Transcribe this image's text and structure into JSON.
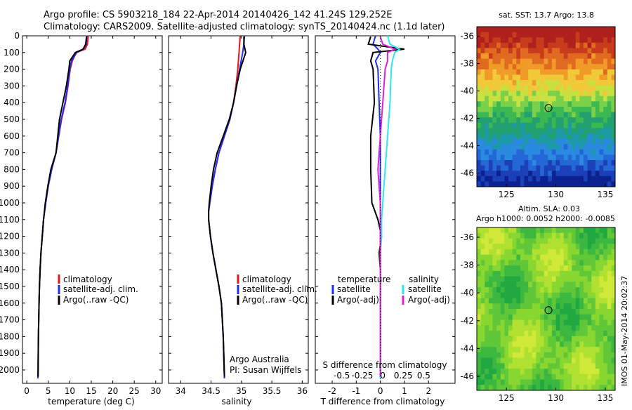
{
  "header": {
    "line1": "Argo profile: CS 5903218_184 22-Apr-2014 20140426_142 41.24S 129.252E",
    "line2": "Climatology: CARS2009. Satellite-adjusted climatology: synTS_20140424.nc (1.1d later)"
  },
  "colors": {
    "climatology": "#e8141c",
    "satellite": "#1f2ef0",
    "argo": "#000000",
    "sal_satellite": "#2ee6f0",
    "sal_argo": "#e020d8"
  },
  "panels": {
    "temperature": {
      "xlabel": "temperature (deg C)",
      "legend": [
        "climatology",
        "satellite-adj. clim.",
        "Argo(..raw -QC)"
      ]
    },
    "salinity": {
      "xlabel": "salinity",
      "legend": [
        "climatology",
        "satellite-adj. clim.",
        "Argo(..raw -QC)"
      ],
      "credit1": "Argo Australia",
      "credit2": "PI: Susan Wijffels"
    },
    "difference": {
      "xlabel": "T difference from climatology",
      "top_label": "S difference from climatology",
      "legend_t_head": "temperature",
      "legend_s_head": "salinity",
      "legend_t": [
        "satellite",
        "Argo(-adj)"
      ],
      "legend_s": [
        "satellite",
        "Argo(-adj)"
      ]
    }
  },
  "maps": {
    "sst_title": "sat. SST: 13.7 Argo: 13.8",
    "sla_title1": "Altim. SLA: 0.03",
    "sla_title2": "Argo h1000: 0.0052 h2000: -0.0085",
    "xticks": [
      "125",
      "130",
      "135"
    ],
    "yticks": [
      "-36",
      "-38",
      "-40",
      "-42",
      "-44",
      "-46"
    ],
    "float_lon": 129.252,
    "float_lat": -41.24,
    "lon_range": [
      122,
      136
    ],
    "lat_range": [
      -47,
      -35.3
    ]
  },
  "side_stamp": "IMOS 01-May-2014 20:02:37",
  "chart_data": [
    {
      "type": "line",
      "title": "",
      "xlabel": "temperature (deg C)",
      "ylabel": "",
      "xlim": [
        -1,
        31.5
      ],
      "ylim": [
        2080,
        0
      ],
      "xticks": [
        0,
        5,
        10,
        15,
        20,
        25,
        30
      ],
      "yticks": [
        0,
        100,
        200,
        300,
        400,
        500,
        600,
        700,
        800,
        900,
        1000,
        1100,
        1200,
        1300,
        1400,
        1500,
        1600,
        1700,
        1800,
        1900,
        2000
      ],
      "series": [
        {
          "name": "climatology",
          "x": [
            14.3,
            14.1,
            13.6,
            11.5,
            10.6,
            10.1,
            9.6,
            9.0,
            8.1,
            6.8,
            5.8,
            5.0,
            4.4,
            3.9,
            3.6,
            3.3,
            3.1,
            2.95,
            2.85,
            2.7,
            2.6
          ],
          "y": [
            0,
            50,
            80,
            100,
            150,
            200,
            300,
            400,
            500,
            700,
            800,
            900,
            1000,
            1100,
            1200,
            1300,
            1400,
            1500,
            1600,
            1800,
            2050
          ]
        },
        {
          "name": "satellite-adj. clim.",
          "x": [
            14.0,
            13.8,
            13.2,
            11.6,
            10.4,
            10.0,
            9.5,
            8.9,
            8.0,
            6.8,
            5.8,
            5.0,
            4.4,
            3.9,
            3.6,
            3.3,
            3.1,
            2.95,
            2.85,
            2.7,
            2.6
          ],
          "y": [
            0,
            50,
            80,
            100,
            150,
            200,
            300,
            400,
            500,
            700,
            800,
            900,
            1000,
            1100,
            1200,
            1300,
            1400,
            1500,
            1600,
            1800,
            2050
          ]
        },
        {
          "name": "Argo(..raw -QC)",
          "x": [
            13.9,
            13.7,
            13.1,
            11.3,
            10.0,
            9.8,
            9.2,
            8.4,
            7.6,
            6.8,
            5.6,
            4.9,
            4.3,
            3.9,
            3.6,
            3.3,
            3.1,
            2.95,
            2.85,
            2.7,
            2.65
          ],
          "y": [
            5,
            50,
            80,
            100,
            150,
            200,
            300,
            400,
            500,
            700,
            800,
            900,
            1000,
            1100,
            1200,
            1300,
            1400,
            1500,
            1600,
            1800,
            2040
          ]
        }
      ]
    },
    {
      "type": "line",
      "title": "",
      "xlabel": "salinity",
      "ylabel": "",
      "xlim": [
        33.8,
        36.1
      ],
      "ylim": [
        2080,
        0
      ],
      "xticks": [
        34,
        34.5,
        35,
        35.5,
        36
      ],
      "yticks": [
        0,
        100,
        200,
        300,
        400,
        500,
        600,
        700,
        800,
        900,
        1000,
        1100,
        1200,
        1300,
        1400,
        1500,
        1600,
        1700,
        1800,
        1900,
        2000
      ],
      "series": [
        {
          "name": "climatology",
          "x": [
            34.98,
            34.97,
            34.96,
            34.94,
            34.91,
            34.87,
            34.81,
            34.72,
            34.63,
            34.57,
            34.52,
            34.48,
            34.46,
            34.46,
            34.49,
            34.53,
            34.58,
            34.63,
            34.67,
            34.7,
            34.72
          ],
          "y": [
            0,
            50,
            100,
            200,
            300,
            400,
            500,
            600,
            700,
            800,
            900,
            1000,
            1050,
            1100,
            1200,
            1300,
            1400,
            1500,
            1600,
            1800,
            2050
          ]
        },
        {
          "name": "satellite-adj. clim.",
          "x": [
            35.05,
            35.04,
            35.02,
            34.97,
            34.92,
            34.87,
            34.81,
            34.72,
            34.63,
            34.57,
            34.52,
            34.48,
            34.46,
            34.46,
            34.49,
            34.53,
            34.58,
            34.63,
            34.67,
            34.7,
            34.72
          ],
          "y": [
            0,
            50,
            100,
            200,
            300,
            400,
            500,
            600,
            700,
            800,
            900,
            1000,
            1050,
            1100,
            1200,
            1300,
            1400,
            1500,
            1600,
            1800,
            2050
          ]
        },
        {
          "name": "Argo(..raw -QC)",
          "x": [
            35.04,
            35.04,
            35.07,
            34.98,
            34.92,
            34.87,
            34.8,
            34.7,
            34.6,
            34.54,
            34.5,
            34.47,
            34.46,
            34.46,
            34.49,
            34.53,
            34.58,
            34.63,
            34.67,
            34.7,
            34.72
          ],
          "y": [
            5,
            50,
            100,
            200,
            300,
            400,
            500,
            600,
            700,
            800,
            900,
            1000,
            1050,
            1100,
            1200,
            1300,
            1400,
            1500,
            1600,
            1800,
            2040
          ]
        }
      ]
    },
    {
      "type": "line",
      "title": "",
      "xlabel": "T difference from climatology",
      "ylabel": "",
      "top_xlabel": "S difference from climatology",
      "xlim": [
        -2.7,
        3.1
      ],
      "ylim": [
        2080,
        0
      ],
      "xticks": [
        -2,
        -1,
        0,
        1,
        2
      ],
      "top_ticks": [
        "-0.5",
        "-0.25",
        "0",
        "0.25",
        "0.5"
      ],
      "yticks": [
        0,
        100,
        200,
        300,
        400,
        500,
        600,
        700,
        800,
        900,
        1000,
        1100,
        1200,
        1300,
        1400,
        1500,
        1600,
        1700,
        1800,
        1900,
        2000
      ],
      "series": [
        {
          "name": "temperature satellite",
          "x": [
            -0.2,
            -0.3,
            -0.1,
            0.0,
            -0.2,
            -0.1,
            -0.05,
            0.0,
            0.0,
            0.0,
            0.0,
            0.0,
            0.0,
            0.0,
            0.0,
            0.0,
            0.0,
            0.0,
            0.0
          ],
          "y": [
            0,
            50,
            80,
            100,
            150,
            200,
            400,
            600,
            800,
            1000,
            1100,
            1200,
            1300,
            1400,
            1500,
            1600,
            1700,
            1900,
            2050
          ]
        },
        {
          "name": "temperature Argo(-adj)",
          "x": [
            -0.4,
            -0.5,
            1.0,
            -0.3,
            -0.4,
            -0.3,
            -0.25,
            -0.4,
            -0.4,
            -0.35,
            -0.1,
            0.05,
            -0.05,
            0.0,
            0.0,
            0.0,
            0.0,
            0.0,
            0.0
          ],
          "y": [
            5,
            50,
            80,
            100,
            150,
            200,
            400,
            600,
            800,
            1000,
            1100,
            1200,
            1300,
            1400,
            1500,
            1600,
            1700,
            1900,
            2040
          ]
        },
        {
          "name": "salinity satellite",
          "x": [
            0.3,
            0.4,
            0.8,
            0.6,
            0.5,
            0.45,
            0.4,
            0.3,
            0.2,
            0.1,
            0.05,
            0.05,
            0.0,
            0.0,
            0.0,
            0.0,
            0.0,
            0.0,
            0.0
          ],
          "y": [
            0,
            50,
            80,
            100,
            150,
            200,
            400,
            600,
            800,
            1000,
            1100,
            1200,
            1300,
            1400,
            1500,
            1600,
            1700,
            1900,
            2050
          ]
        },
        {
          "name": "salinity Argo(-adj)",
          "x": [
            0.0,
            0.1,
            0.6,
            0.3,
            0.3,
            0.2,
            0.1,
            0.0,
            -0.1,
            0.0,
            0.0,
            0.0,
            0.0,
            0.0,
            0.0,
            0.0,
            0.0,
            0.0,
            0.0
          ],
          "y": [
            5,
            50,
            80,
            100,
            150,
            200,
            400,
            600,
            800,
            1000,
            1100,
            1200,
            1300,
            1400,
            1500,
            1600,
            1700,
            1900,
            2040
          ]
        }
      ]
    }
  ]
}
